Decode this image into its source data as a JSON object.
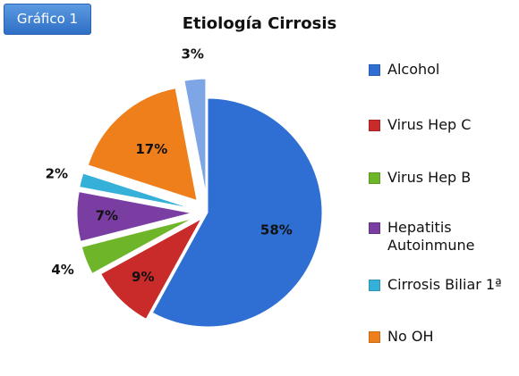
{
  "badge": {
    "label": "Gráfico 1",
    "color": "#3a7fd4"
  },
  "chart_data": {
    "type": "pie",
    "title": "Etiología Cirrosis",
    "legend_position": "right",
    "slices": [
      {
        "name": "Alcohol",
        "value": 58,
        "label": "58%",
        "color": "#2f6fd4",
        "exploded": false
      },
      {
        "name": "Virus Hep C",
        "value": 9,
        "label": "9%",
        "color": "#c92a2a",
        "exploded": true
      },
      {
        "name": "Virus Hep B",
        "value": 4,
        "label": "4%",
        "color": "#6fb52a",
        "exploded": true
      },
      {
        "name": "Hepatitis\nAutoinmune",
        "value": 7,
        "label": "7%",
        "color": "#7a3ea3",
        "exploded": true
      },
      {
        "name": "Cirrosis Biliar 1ª",
        "value": 2,
        "label": "2%",
        "color": "#35b0d8",
        "exploded": true
      },
      {
        "name": "No OH",
        "value": 17,
        "label": "17%",
        "color": "#ef7f1a",
        "exploded": true
      },
      {
        "name": "",
        "value": 3,
        "label": "3%",
        "color": "#7ea6e6",
        "exploded": true
      }
    ]
  }
}
